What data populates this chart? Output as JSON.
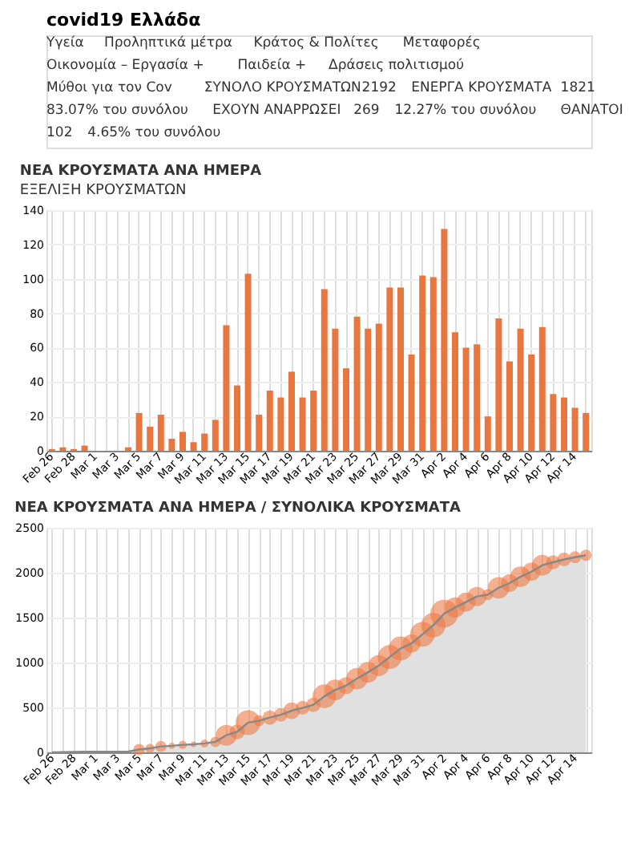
{
  "chart_data": [
    {
      "type": "other",
      "title": "covid19 Ελλάδα",
      "annotations": [
        "Υγεία",
        "Προληπτικά μέτρα",
        "Κράτος & Πολίτες",
        "Μεταφορές",
        "Οικονομία – Εργασία +",
        "Παιδεία +",
        "Δράσεις πολιτισμού",
        "Μύθοι για τον Cov",
        "ΣΥΝΟΛΟ ΚΡΟΥΣΜΑΤΩΝ",
        "2192",
        "ΕΝΕΡΓΑ ΚΡΟΥΣΜΑΤΑ",
        "1821",
        "83.07% του συνόλου",
        "ΕΧΟΥΝ ΑΝΑΡΡΩΣΕΙ",
        "269",
        "12.27% του συνόλου",
        "ΘΑΝΑΤΟΙ",
        "102",
        "4.65% του συνόλου"
      ]
    },
    {
      "type": "bar",
      "title": "ΝΕΑ ΚΡΟΥΣΜΑΤΑ ΑΝΑ ΗΜΕΡΑ",
      "annotations": [
        "ΕΞΕΛΙΞΗ ΚΡΟΥΣΜΑΤΩΝ"
      ],
      "categories": [
        "Feb 26",
        null,
        "Feb 28",
        null,
        "Mar 1",
        null,
        "Mar 3",
        null,
        "Mar 5",
        null,
        "Mar 7",
        null,
        "Mar 9",
        null,
        "Mar 11",
        null,
        "Mar 13",
        null,
        "Mar 15",
        null,
        "Mar 17",
        null,
        "Mar 19",
        null,
        "Mar 21",
        null,
        "Mar 23",
        null,
        "Mar 25",
        null,
        "Mar 27",
        null,
        "Mar 29",
        null,
        "Mar 31",
        null,
        "Apr 2",
        null,
        "Apr 4",
        null,
        "Apr 6",
        null,
        "Apr 8",
        null,
        "Apr 10",
        null,
        "Apr 12",
        null,
        "Apr 14",
        null
      ],
      "values": [
        1,
        2,
        1,
        3,
        0,
        0,
        0,
        2,
        22,
        14,
        21,
        7,
        11,
        5,
        10,
        18,
        73,
        38,
        103,
        21,
        35,
        31,
        46,
        31,
        35,
        94,
        71,
        48,
        78,
        71,
        74,
        95,
        95,
        56,
        102,
        101,
        129,
        69,
        60,
        62,
        20,
        77,
        52,
        71,
        56,
        72,
        33,
        31,
        25,
        22
      ],
      "color": "#e8763f",
      "ylim": [
        0,
        140
      ],
      "yticks": [
        0,
        20,
        40,
        60,
        80,
        100,
        120,
        140
      ],
      "grid": true
    },
    {
      "type": "area",
      "title": "ΝΕΑ ΚΡΟΥΣΜΑΤΑ ΑΝΑ ΗΜΕΡΑ / ΣΥΝΟΛΙΚΑ ΚΡΟΥΣΜΑΤΑ",
      "categories": [
        "Feb 26",
        null,
        "Feb 28",
        null,
        "Mar 1",
        null,
        "Mar 3",
        null,
        "Mar 5",
        null,
        "Mar 7",
        null,
        "Mar 9",
        null,
        "Mar 11",
        null,
        "Mar 13",
        null,
        "Mar 15",
        null,
        "Mar 17",
        null,
        "Mar 19",
        null,
        "Mar 21",
        null,
        "Mar 23",
        null,
        "Mar 25",
        null,
        "Mar 27",
        null,
        "Mar 29",
        null,
        "Mar 31",
        null,
        "Apr 2",
        null,
        "Apr 4",
        null,
        "Apr 6",
        null,
        "Apr 8",
        null,
        "Apr 10",
        null,
        "Apr 12",
        null,
        "Apr 14",
        null
      ],
      "series": [
        {
          "type": "area",
          "color": "#e0e0e0",
          "values": [
            1,
            3,
            4,
            7,
            7,
            7,
            7,
            9,
            31,
            45,
            66,
            73,
            84,
            89,
            99,
            117,
            190,
            228,
            331,
            352,
            387,
            418,
            464,
            495,
            530,
            624,
            695,
            743,
            821,
            892,
            966,
            1061,
            1156,
            1212,
            1314,
            1415,
            1544,
            1613,
            1673,
            1735,
            1755,
            1832,
            1884,
            1955,
            2011,
            2083,
            2116,
            2147,
            2172,
            2194
          ]
        },
        {
          "type": "bubble",
          "color": "#ec7a45",
          "values": [
            null,
            null,
            null,
            null,
            null,
            null,
            null,
            null,
            31,
            45,
            66,
            73,
            84,
            89,
            99,
            117,
            190,
            228,
            331,
            352,
            387,
            418,
            464,
            495,
            530,
            624,
            695,
            743,
            821,
            892,
            966,
            1061,
            1156,
            1212,
            1314,
            1415,
            1544,
            1613,
            1673,
            1735,
            1755,
            1832,
            1884,
            1955,
            2011,
            2083,
            2116,
            2147,
            2172,
            2194
          ],
          "sizes": [
            null,
            null,
            null,
            null,
            null,
            null,
            null,
            null,
            0.17,
            0.11,
            0.16,
            0.05,
            0.09,
            0.04,
            0.08,
            0.14,
            0.57,
            0.29,
            0.8,
            0.16,
            0.27,
            0.24,
            0.36,
            0.24,
            0.27,
            0.73,
            0.55,
            0.37,
            0.6,
            0.55,
            0.57,
            0.74,
            0.74,
            0.43,
            0.79,
            0.78,
            1,
            0.53,
            0.47,
            0.48,
            0.16,
            0.6,
            0.4,
            0.55,
            0.43,
            0.56,
            0.26,
            0.24,
            0.19,
            0.17
          ]
        }
      ],
      "ylim": [
        0,
        2500
      ],
      "yticks": [
        0,
        500,
        1000,
        1500,
        2000,
        2500
      ],
      "grid": true
    }
  ]
}
